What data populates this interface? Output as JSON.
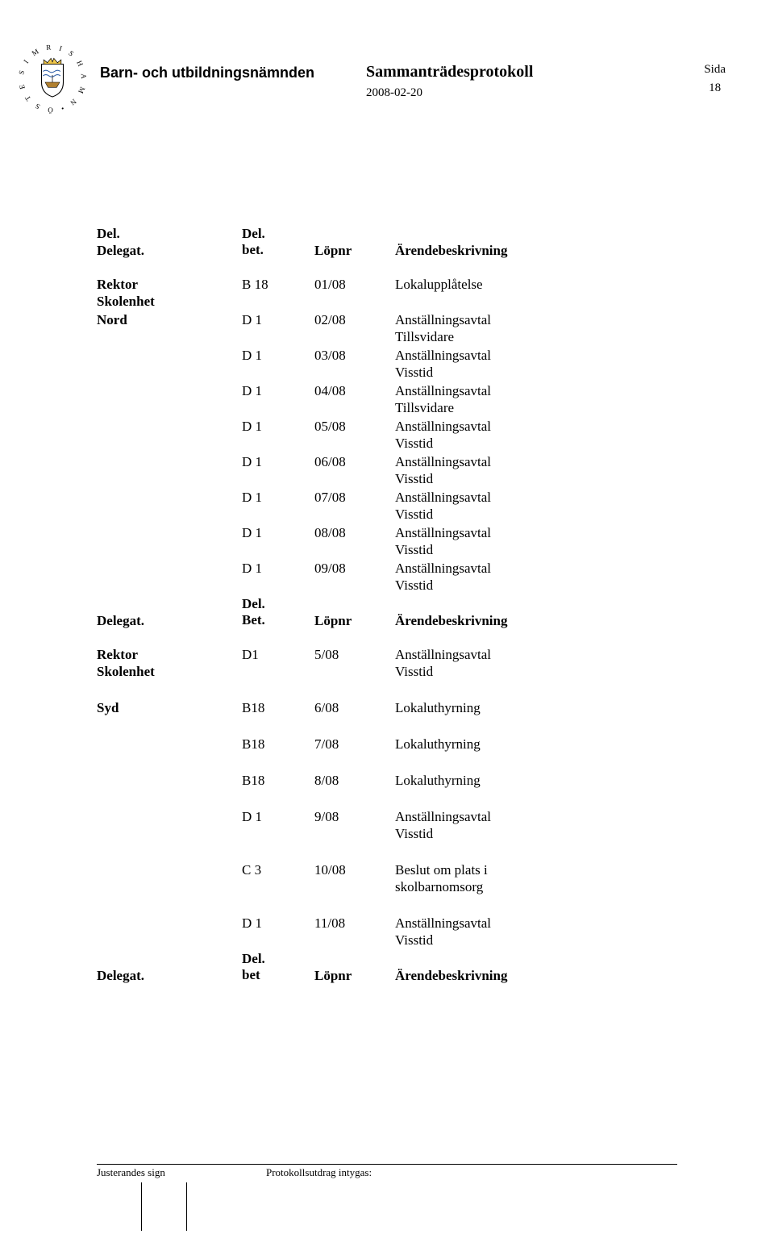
{
  "header": {
    "committee": "Barn- och utbildningsnämnden",
    "title": "Sammanträdesprotokoll",
    "date": "2008-02-20",
    "sida_label": "Sida",
    "page_number": "18"
  },
  "table_header": {
    "delegat": "Delegat.",
    "del": "Del.",
    "bet_lower": "bet.",
    "bet_cap": "Bet.",
    "bet_footer": "bet",
    "lopnr": "Löpnr",
    "desc": "Ärendebeskrivning"
  },
  "sections": [
    {
      "left_lines": [
        "Rektor",
        "Skolenhet",
        "Nord"
      ],
      "rows": [
        {
          "code": "B 18",
          "lopnr": "01/08",
          "desc_lines": [
            "Lokalupplåtelse",
            ""
          ]
        },
        {
          "code": "D 1",
          "lopnr": "02/08",
          "desc_lines": [
            "Anställningsavtal",
            "Tillsvidare"
          ]
        },
        {
          "code": "D 1",
          "lopnr": "03/08",
          "desc_lines": [
            "Anställningsavtal",
            "Visstid"
          ]
        },
        {
          "code": "D 1",
          "lopnr": "04/08",
          "desc_lines": [
            "Anställningsavtal",
            "Tillsvidare"
          ]
        },
        {
          "code": "D 1",
          "lopnr": "05/08",
          "desc_lines": [
            "Anställningsavtal",
            "Visstid"
          ]
        },
        {
          "code": "D 1",
          "lopnr": "06/08",
          "desc_lines": [
            "Anställningsavtal",
            "Visstid"
          ]
        },
        {
          "code": "D 1",
          "lopnr": "07/08",
          "desc_lines": [
            "Anställningsavtal",
            "Visstid"
          ]
        },
        {
          "code": "D 1",
          "lopnr": "08/08",
          "desc_lines": [
            "Anställningsavtal",
            "Visstid"
          ]
        },
        {
          "code": "D 1",
          "lopnr": "09/08",
          "desc_lines": [
            "Anställningsavtal",
            "Visstid"
          ]
        }
      ]
    },
    {
      "left_lines": [
        "Rektor",
        "Skolenhet",
        "Syd"
      ],
      "rows": [
        {
          "code": "D1",
          "lopnr": "5/08",
          "desc_lines": [
            "Anställningsavtal",
            "Visstid"
          ]
        },
        {
          "code": "B18",
          "lopnr": "6/08",
          "desc_lines": [
            "Lokaluthyrning"
          ]
        },
        {
          "code": "B18",
          "lopnr": "7/08",
          "desc_lines": [
            "Lokaluthyrning"
          ]
        },
        {
          "code": "B18",
          "lopnr": "8/08",
          "desc_lines": [
            "Lokaluthyrning"
          ]
        },
        {
          "code": "D 1",
          "lopnr": "9/08",
          "desc_lines": [
            "Anställningsavtal",
            "Visstid"
          ]
        },
        {
          "code": "C 3",
          "lopnr": "10/08",
          "desc_lines": [
            "Beslut om plats i",
            "skolbarnomsorg"
          ]
        },
        {
          "code": "D 1",
          "lopnr": "11/08",
          "desc_lines": [
            "Anställningsavtal",
            "Visstid"
          ]
        }
      ]
    }
  ],
  "footer": {
    "left": "Justerandes sign",
    "right": "Protokollsutdrag intygas:"
  }
}
